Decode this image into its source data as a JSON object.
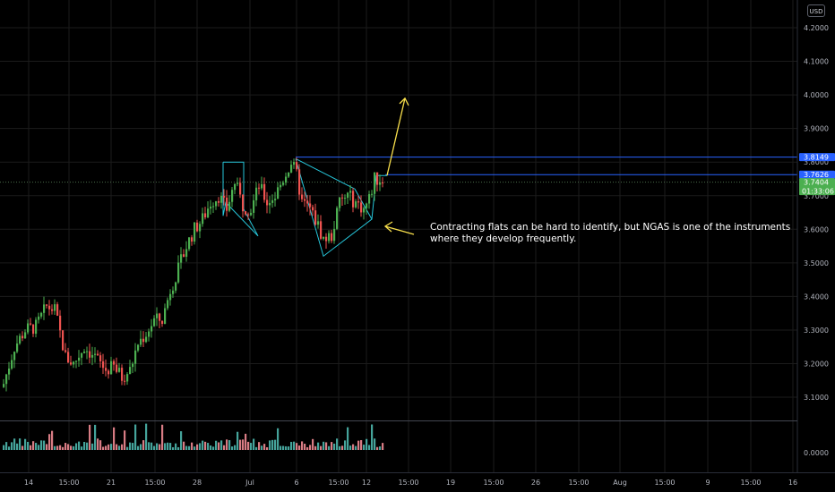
{
  "currency": "USD",
  "annotation": {
    "line1": "Contracting flats can be hard to identify, but NGAS is one of the instruments",
    "line2": "where they develop frequently."
  },
  "colors": {
    "up": "#4caf50",
    "down": "#ef5350",
    "level_line": "#2962ff",
    "pattern": "#26c6da",
    "arrow": "#f9e04c",
    "grid": "#1b1b1b",
    "vol_up": "#4db6ac",
    "vol_down": "#ef8a92"
  },
  "price_labels": [
    {
      "value": "3.8149",
      "bg": "#2962ff"
    },
    {
      "value": "3.7626",
      "bg": "#2962ff"
    },
    {
      "value": "3.7404",
      "bg": "#4caf50"
    }
  ],
  "countdown": "01:33:06",
  "chart_data": {
    "type": "candlestick",
    "y_ticks": [
      "4.2000",
      "4.1000",
      "4.0000",
      "3.9000",
      "3.8000",
      "3.7000",
      "3.6000",
      "3.5000",
      "3.4000",
      "3.3000",
      "3.2000",
      "3.1000"
    ],
    "y_range": [
      3.06,
      4.26
    ],
    "volume_ticks": [
      "0.0000"
    ],
    "x_ticks": [
      "14",
      "15:00",
      "21",
      "15:00",
      "28",
      "Jul",
      "6",
      "15:00",
      "12",
      "15:00",
      "19",
      "15:00",
      "26",
      "15:00",
      "Aug",
      "15:00",
      "9",
      "15:00",
      "16"
    ],
    "levels": [
      3.8149,
      3.7626,
      3.7404
    ],
    "anchors": [
      [
        0,
        3.14
      ],
      [
        4,
        3.25
      ],
      [
        8,
        3.3
      ],
      [
        12,
        3.31
      ],
      [
        16,
        3.37
      ],
      [
        19,
        3.36
      ],
      [
        23,
        3.22
      ],
      [
        26,
        3.2
      ],
      [
        30,
        3.25
      ],
      [
        34,
        3.22
      ],
      [
        38,
        3.18
      ],
      [
        41,
        3.19
      ],
      [
        44,
        3.16
      ],
      [
        47,
        3.18
      ],
      [
        50,
        3.26
      ],
      [
        53,
        3.29
      ],
      [
        56,
        3.33
      ],
      [
        59,
        3.33
      ],
      [
        62,
        3.42
      ],
      [
        65,
        3.48
      ],
      [
        68,
        3.55
      ],
      [
        71,
        3.6
      ],
      [
        74,
        3.63
      ],
      [
        77,
        3.68
      ],
      [
        80,
        3.7
      ],
      [
        83,
        3.66
      ],
      [
        86,
        3.74
      ],
      [
        89,
        3.67
      ],
      [
        92,
        3.66
      ],
      [
        95,
        3.73
      ],
      [
        98,
        3.68
      ],
      [
        101,
        3.7
      ],
      [
        104,
        3.75
      ],
      [
        107,
        3.8
      ],
      [
        109,
        3.76
      ],
      [
        111,
        3.68
      ],
      [
        114,
        3.66
      ],
      [
        117,
        3.61
      ],
      [
        119,
        3.57
      ],
      [
        122,
        3.58
      ],
      [
        125,
        3.68
      ],
      [
        128,
        3.7
      ],
      [
        131,
        3.68
      ],
      [
        134,
        3.66
      ],
      [
        136,
        3.69
      ],
      [
        138,
        3.75
      ],
      [
        141,
        3.748
      ]
    ],
    "patterns": {
      "box": [
        [
          3.8,
          3.64
        ],
        [
          3.8,
          3.66
        ],
        [
          3.58,
          3.68
        ]
      ],
      "triangle": [
        [
          3.81,
          3.72
        ],
        [
          3.63,
          3.52
        ]
      ],
      "projection": [
        3.76,
        3.99
      ]
    }
  }
}
